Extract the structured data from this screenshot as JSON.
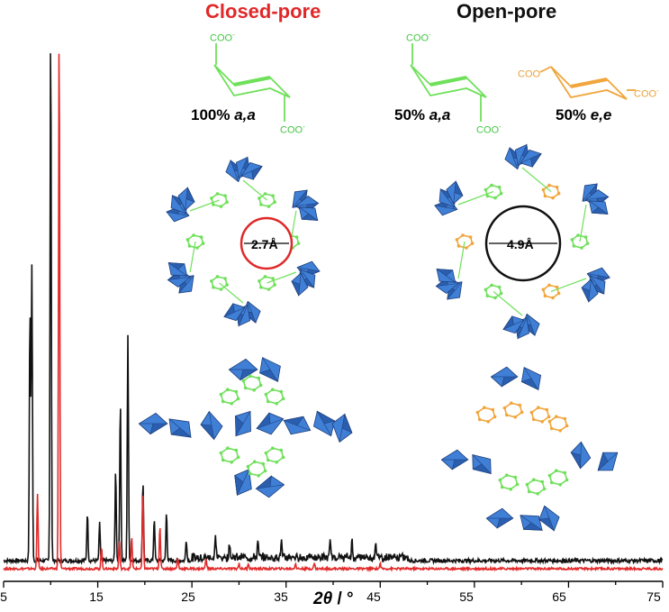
{
  "headers": {
    "closed": "Closed-pore",
    "open": "Open-pore"
  },
  "conformers": {
    "closed_aa": {
      "pct": "100% ",
      "lab": "a,a"
    },
    "open_aa": {
      "pct": "50% ",
      "lab": "a,a"
    },
    "open_ee": {
      "pct": "50% ",
      "lab": "e,e"
    },
    "carboxylate_text": "COO",
    "carboxylate_charge": "-"
  },
  "pores": {
    "closed": "2.7Å",
    "open": "4.9Å"
  },
  "colors": {
    "closed_trace": "#e32a2a",
    "open_trace": "#111111",
    "linker_aa": "#6fe05a",
    "linker_ee": "#f0a63c",
    "polyhedra": "#3f7fd6",
    "closed_header": "#e0282a"
  },
  "chart_data": {
    "type": "line",
    "xlabel_symbol": "2θ",
    "xlabel_unit": " / °",
    "xlim": [
      5,
      75
    ],
    "xticks": [
      5,
      15,
      25,
      35,
      45,
      55,
      65,
      75
    ],
    "ylabel": "",
    "series": [
      {
        "color": "#111111",
        "peaks": [
          [
            7.8,
            0.47
          ],
          [
            8.0,
            0.55
          ],
          [
            10.0,
            1.0
          ],
          [
            13.9,
            0.09
          ],
          [
            15.2,
            0.07
          ],
          [
            16.9,
            0.17
          ],
          [
            17.4,
            0.3
          ],
          [
            18.2,
            0.42
          ],
          [
            19.8,
            0.15
          ],
          [
            21.0,
            0.08
          ],
          [
            22.3,
            0.09
          ],
          [
            24.4,
            0.04
          ],
          [
            27.5,
            0.04
          ],
          [
            29,
            0.03
          ],
          [
            32,
            0.03
          ],
          [
            34.5,
            0.03
          ],
          [
            39.7,
            0.03
          ],
          [
            42,
            0.03
          ],
          [
            44.5,
            0.03
          ]
        ]
      },
      {
        "color": "#e32a2a",
        "peaks": [
          [
            8.6,
            0.14
          ],
          [
            10.9,
            1.0
          ],
          [
            15.4,
            0.04
          ],
          [
            17.3,
            0.05
          ],
          [
            18.6,
            0.06
          ],
          [
            19.8,
            0.14
          ],
          [
            21.6,
            0.08
          ],
          [
            23.5,
            0.02
          ],
          [
            26.5,
            0.02
          ],
          [
            30,
            0.01
          ],
          [
            31,
            0.01
          ],
          [
            36,
            0.01
          ],
          [
            38,
            0.01
          ],
          [
            45,
            0.01
          ]
        ]
      }
    ]
  }
}
